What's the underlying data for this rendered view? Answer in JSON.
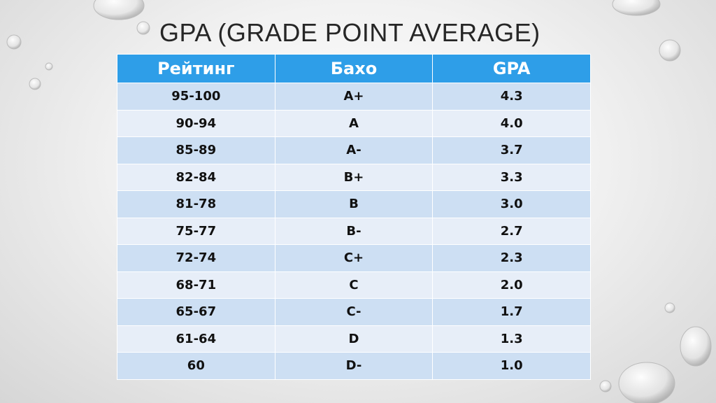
{
  "title": "GPA (GRADE POINT AVERAGE)",
  "table": {
    "header": [
      "Рейтинг",
      "Бахо",
      "GPA"
    ],
    "rows": [
      [
        "95-100",
        "A+",
        "4.3"
      ],
      [
        "90-94",
        "A",
        "4.0"
      ],
      [
        "85-89",
        "A-",
        "3.7"
      ],
      [
        "82-84",
        "B+",
        "3.3"
      ],
      [
        "81-78",
        "B",
        "3.0"
      ],
      [
        "75-77",
        "B-",
        "2.7"
      ],
      [
        "72-74",
        "C+",
        "2.3"
      ],
      [
        "68-71",
        "C",
        "2.0"
      ],
      [
        "65-67",
        "C-",
        "1.7"
      ],
      [
        "61-64",
        "D",
        "1.3"
      ],
      [
        "60",
        "D-",
        "1.0"
      ]
    ]
  }
}
